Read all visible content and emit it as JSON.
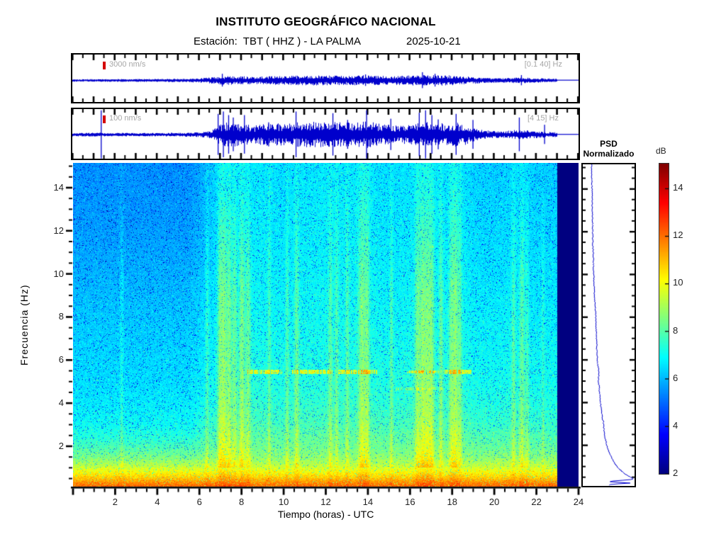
{
  "header": {
    "title": "INSTITUTO GEOGRÁFICO NACIONAL",
    "station_line": "Estación:  TBT ( HHZ ) - LA PALMA",
    "date": "2025-10-21"
  },
  "traces": [
    {
      "scale_label": "3000 nm/s",
      "band_label": "[0.1 40] Hz"
    },
    {
      "scale_label": "100 nm/s",
      "band_label": "[4 15] Hz"
    }
  ],
  "axes": {
    "xlabel": "Tiempo (horas) - UTC",
    "ylabel": "Frecuencia  (Hz)",
    "x_ticks": [
      2,
      4,
      6,
      8,
      10,
      12,
      14,
      16,
      18,
      20,
      22,
      24
    ],
    "y_ticks": [
      2,
      4,
      6,
      8,
      10,
      12,
      14
    ],
    "x_minor_step": 0.5,
    "y_minor_step": 0.5,
    "x_range_hours": [
      0,
      24
    ],
    "y_range_hz": [
      0.125,
      15.15
    ]
  },
  "psd_panel": {
    "title_line1": "PSD",
    "title_line2": "Normalizado"
  },
  "colorbar": {
    "label": "dB",
    "ticks": [
      14,
      12,
      10,
      8,
      6,
      4,
      2
    ],
    "range_db": [
      2,
      15.05
    ],
    "colormap": "jet"
  },
  "colors": {
    "trace": "#0000cc",
    "scale_marker": "#d40000",
    "muted_text": "#a6a6a6",
    "nodata": "#000080"
  },
  "chart_data": [
    {
      "type": "line",
      "name": "seismogram_broadband",
      "scale_label": "3000 nm/s",
      "filter_band_hz": [
        0.1,
        40
      ],
      "x_range_hours": [
        0,
        24
      ],
      "data_end_hour": 23,
      "envelope": [
        [
          0,
          0.025
        ],
        [
          3,
          0.03
        ],
        [
          5,
          0.035
        ],
        [
          6,
          0.05
        ],
        [
          6.8,
          0.09
        ],
        [
          7.5,
          0.11
        ],
        [
          8.5,
          0.09
        ],
        [
          10,
          0.11
        ],
        [
          11.5,
          0.12
        ],
        [
          13,
          0.11
        ],
        [
          14,
          0.13
        ],
        [
          15,
          0.1
        ],
        [
          16,
          0.12
        ],
        [
          17,
          0.13
        ],
        [
          18,
          0.12
        ],
        [
          18.8,
          0.09
        ],
        [
          19.5,
          0.06
        ],
        [
          20.5,
          0.05
        ],
        [
          21.3,
          0.07
        ],
        [
          22,
          0.05
        ],
        [
          23,
          0.04
        ]
      ],
      "spikes": [
        [
          7.1,
          0.2
        ],
        [
          13.9,
          0.18
        ],
        [
          16.6,
          0.25
        ],
        [
          17.2,
          0.2
        ],
        [
          21.3,
          0.16
        ]
      ]
    },
    {
      "type": "line",
      "name": "seismogram_filtered",
      "scale_label": "100 nm/s",
      "filter_band_hz": [
        4,
        15
      ],
      "x_range_hours": [
        0,
        24
      ],
      "data_end_hour": 23,
      "envelope": [
        [
          0,
          0.05
        ],
        [
          1,
          0.055
        ],
        [
          2,
          0.05
        ],
        [
          3,
          0.045
        ],
        [
          4,
          0.05
        ],
        [
          5,
          0.055
        ],
        [
          6,
          0.07
        ],
        [
          6.6,
          0.12
        ],
        [
          6.9,
          0.3
        ],
        [
          7.2,
          0.4
        ],
        [
          7.6,
          0.42
        ],
        [
          8,
          0.36
        ],
        [
          8.6,
          0.3
        ],
        [
          9.2,
          0.36
        ],
        [
          9.8,
          0.4
        ],
        [
          10.4,
          0.38
        ],
        [
          11,
          0.42
        ],
        [
          11.6,
          0.44
        ],
        [
          12.2,
          0.4
        ],
        [
          12.8,
          0.42
        ],
        [
          13.4,
          0.38
        ],
        [
          14,
          0.44
        ],
        [
          14.6,
          0.36
        ],
        [
          15.2,
          0.3
        ],
        [
          15.8,
          0.3
        ],
        [
          16.3,
          0.36
        ],
        [
          16.8,
          0.42
        ],
        [
          17.3,
          0.38
        ],
        [
          17.8,
          0.36
        ],
        [
          18.3,
          0.4
        ],
        [
          18.7,
          0.32
        ],
        [
          19.2,
          0.18
        ],
        [
          19.8,
          0.12
        ],
        [
          20.4,
          0.1
        ],
        [
          21,
          0.15
        ],
        [
          21.6,
          0.13
        ],
        [
          22.2,
          0.1
        ],
        [
          22.7,
          0.08
        ],
        [
          23,
          0.07
        ]
      ],
      "spikes": [
        [
          1.35,
          1.0
        ],
        [
          6.9,
          0.85
        ],
        [
          7.15,
          0.95
        ],
        [
          7.4,
          0.8
        ],
        [
          7.62,
          0.7
        ],
        [
          8.15,
          0.8
        ],
        [
          9.3,
          0.5
        ],
        [
          10.6,
          0.95
        ],
        [
          12.35,
          0.88
        ],
        [
          13.05,
          0.6
        ],
        [
          13.95,
          1.0
        ],
        [
          15.1,
          0.65
        ],
        [
          16.45,
          0.9
        ],
        [
          16.75,
          1.0
        ],
        [
          17.05,
          0.8
        ],
        [
          17.35,
          0.62
        ],
        [
          18.2,
          0.85
        ],
        [
          19.0,
          0.6
        ],
        [
          21.2,
          0.7
        ],
        [
          22.4,
          0.4
        ]
      ]
    },
    {
      "type": "heatmap",
      "name": "spectrogram",
      "x_range_hours": [
        0,
        24
      ],
      "data_end_hour": 23,
      "freq_range_hz": [
        0.125,
        15.15
      ],
      "value_range_db": [
        2,
        15.05
      ],
      "colormap": "jet",
      "background_profile_db": [
        [
          0.125,
          12.1
        ],
        [
          0.3,
          11.6
        ],
        [
          0.5,
          10.9
        ],
        [
          0.8,
          10.1
        ],
        [
          1.1,
          9.3
        ],
        [
          1.5,
          8.6
        ],
        [
          2,
          8.1
        ],
        [
          3,
          7.5
        ],
        [
          4,
          7.2
        ],
        [
          5,
          7.0
        ],
        [
          6,
          6.9
        ],
        [
          8,
          6.7
        ],
        [
          10,
          6.5
        ],
        [
          12,
          6.35
        ],
        [
          15.15,
          6.2
        ]
      ],
      "time_modulation_db": [
        [
          0,
          -0.5
        ],
        [
          5.5,
          -0.5
        ],
        [
          6.5,
          -0.05
        ],
        [
          7,
          0.25
        ],
        [
          9,
          0.3
        ],
        [
          10,
          0.2
        ],
        [
          11,
          0.3
        ],
        [
          14,
          0.35
        ],
        [
          15,
          0.2
        ],
        [
          16,
          0.3
        ],
        [
          18.5,
          0.3
        ],
        [
          19,
          0.1
        ],
        [
          20,
          0.05
        ],
        [
          21,
          0.15
        ],
        [
          22,
          0.05
        ],
        [
          23,
          0.05
        ]
      ],
      "vertical_stripes": [
        [
          2.3,
          0.06,
          0.7
        ],
        [
          6.35,
          0.06,
          0.9
        ],
        [
          6.95,
          0.08,
          1.3
        ],
        [
          7.15,
          0.1,
          1.6
        ],
        [
          7.4,
          0.08,
          1.4
        ],
        [
          7.65,
          0.08,
          1.2
        ],
        [
          8.0,
          0.1,
          1.5
        ],
        [
          8.3,
          0.08,
          1.2
        ],
        [
          9.3,
          0.06,
          0.8
        ],
        [
          10.15,
          0.06,
          0.9
        ],
        [
          10.6,
          0.08,
          1.1
        ],
        [
          12.2,
          0.07,
          1.0
        ],
        [
          12.5,
          0.06,
          0.9
        ],
        [
          13.0,
          0.06,
          0.9
        ],
        [
          13.7,
          0.12,
          1.5
        ],
        [
          13.95,
          0.08,
          1.2
        ],
        [
          15.1,
          0.06,
          0.9
        ],
        [
          16.35,
          0.1,
          1.4
        ],
        [
          16.6,
          0.09,
          1.6
        ],
        [
          16.8,
          0.08,
          1.3
        ],
        [
          17.0,
          0.1,
          1.5
        ],
        [
          17.45,
          0.07,
          1.1
        ],
        [
          17.95,
          0.09,
          1.3
        ],
        [
          18.15,
          0.08,
          1.5
        ],
        [
          18.35,
          0.07,
          1.1
        ],
        [
          20.9,
          0.07,
          1.0
        ],
        [
          21.3,
          0.09,
          1.2
        ],
        [
          21.55,
          0.06,
          0.8
        ],
        [
          22.3,
          0.05,
          0.6
        ]
      ],
      "tremor_bands": [
        [
          5.45,
          0.07,
          8.2,
          9.9,
          3.2
        ],
        [
          5.45,
          0.07,
          10.4,
          12.3,
          3.0
        ],
        [
          5.45,
          0.07,
          12.6,
          14.4,
          3.2
        ],
        [
          5.45,
          0.06,
          15.9,
          16.65,
          3.0
        ],
        [
          5.45,
          0.06,
          16.9,
          17.35,
          2.8
        ],
        [
          5.45,
          0.07,
          17.6,
          18.9,
          3.0
        ],
        [
          4.65,
          0.05,
          15.3,
          16.6,
          1.5
        ],
        [
          4.65,
          0.05,
          16.9,
          17.5,
          1.1
        ]
      ],
      "speckle": {
        "amp": 0.55,
        "dark_fraction": 0.055,
        "bright_fraction": 0.012
      }
    },
    {
      "type": "line",
      "name": "psd_normalizado",
      "orientation": "vertical",
      "freq_range_hz": [
        0.125,
        15.15
      ],
      "points": [
        [
          15.15,
          0.17
        ],
        [
          14,
          0.18
        ],
        [
          13,
          0.185
        ],
        [
          12,
          0.19
        ],
        [
          11,
          0.2
        ],
        [
          10,
          0.21
        ],
        [
          9,
          0.225
        ],
        [
          8.5,
          0.245
        ],
        [
          8,
          0.25
        ],
        [
          7,
          0.265
        ],
        [
          6,
          0.28
        ],
        [
          5.6,
          0.3
        ],
        [
          5.4,
          0.315
        ],
        [
          5.1,
          0.3
        ],
        [
          4.6,
          0.32
        ],
        [
          4,
          0.34
        ],
        [
          3.5,
          0.37
        ],
        [
          3,
          0.4
        ],
        [
          2.5,
          0.42
        ],
        [
          2,
          0.46
        ],
        [
          1.7,
          0.5
        ],
        [
          1.4,
          0.56
        ],
        [
          1.1,
          0.63
        ],
        [
          0.9,
          0.7
        ],
        [
          0.7,
          0.79
        ],
        [
          0.55,
          0.88
        ],
        [
          0.45,
          0.96
        ],
        [
          0.4,
          0.97
        ],
        [
          0.36,
          0.8
        ],
        [
          0.33,
          0.6
        ],
        [
          0.3,
          0.52
        ],
        [
          0.27,
          0.55
        ],
        [
          0.24,
          0.93
        ],
        [
          0.21,
          0.9
        ],
        [
          0.18,
          0.55
        ],
        [
          0.125,
          0.5
        ]
      ],
      "jitter": 0.02
    }
  ]
}
